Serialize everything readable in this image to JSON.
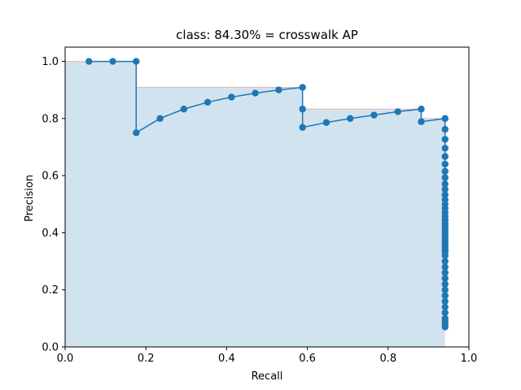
{
  "chart_data": {
    "type": "line",
    "title": "class: 84.30% = crosswalk AP",
    "xlabel": "Recall",
    "ylabel": "Precision",
    "xlim": [
      0.0,
      1.0
    ],
    "ylim": [
      0.0,
      1.05
    ],
    "xticks": [
      "0.0",
      "0.2",
      "0.4",
      "0.6",
      "0.8",
      "1.0"
    ],
    "yticks": [
      "0.0",
      "0.2",
      "0.4",
      "0.6",
      "0.8",
      "1.0"
    ],
    "grid": false,
    "colors": {
      "line": "#1f77b4",
      "fill": "#d2e3f0",
      "envelope": "#e8b4b0"
    },
    "series": [
      {
        "values_x": [
          0.059,
          0.118,
          0.176,
          0.176,
          0.235,
          0.294,
          0.353,
          0.412,
          0.471,
          0.529,
          0.588,
          0.588,
          0.588,
          0.647,
          0.706,
          0.765,
          0.824,
          0.882,
          0.882,
          0.941,
          0.941,
          0.941,
          0.941,
          0.941,
          0.941,
          0.941,
          0.941,
          0.941,
          0.941,
          0.941,
          0.941,
          0.941,
          0.941,
          0.941,
          0.941,
          0.941,
          0.941,
          0.941,
          0.941,
          0.941,
          0.941,
          0.941,
          0.941,
          0.941,
          0.941,
          0.941,
          0.941,
          0.941,
          0.941,
          0.941,
          0.941,
          0.941,
          0.941,
          0.941,
          0.941,
          0.941,
          0.941,
          0.941,
          0.941,
          0.941,
          0.941,
          0.941,
          0.941
        ],
        "values_y": [
          1.0,
          1.0,
          1.0,
          0.75,
          0.8,
          0.833,
          0.857,
          0.875,
          0.889,
          0.9,
          0.909,
          0.833,
          0.769,
          0.786,
          0.8,
          0.812,
          0.824,
          0.833,
          0.789,
          0.8,
          0.762,
          0.727,
          0.696,
          0.667,
          0.64,
          0.615,
          0.593,
          0.571,
          0.552,
          0.533,
          0.516,
          0.5,
          0.485,
          0.471,
          0.457,
          0.444,
          0.432,
          0.421,
          0.41,
          0.4,
          0.39,
          0.381,
          0.372,
          0.364,
          0.356,
          0.348,
          0.34,
          0.333,
          0.32,
          0.3,
          0.28,
          0.26,
          0.24,
          0.22,
          0.2,
          0.18,
          0.16,
          0.14,
          0.12,
          0.1,
          0.09,
          0.08,
          0.07
        ]
      }
    ],
    "interpolated_envelope": {
      "x": [
        0.0,
        0.176,
        0.176,
        0.588,
        0.588,
        0.882,
        0.882,
        0.941,
        0.941
      ],
      "y": [
        1.0,
        1.0,
        0.909,
        0.909,
        0.833,
        0.833,
        0.8,
        0.8,
        0.0
      ]
    }
  }
}
